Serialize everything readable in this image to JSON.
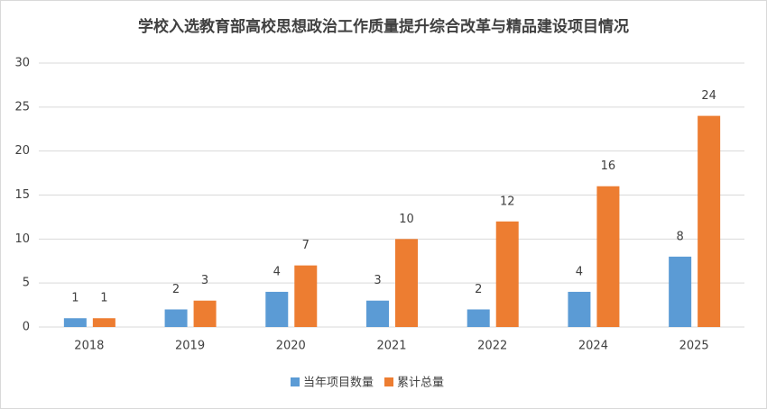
{
  "chart_data": {
    "type": "bar",
    "title": "学校入选教育部高校思想政治工作质量提升综合改革与精品建设项目情况",
    "categories": [
      "2018",
      "2019",
      "2020",
      "2021",
      "2022",
      "2024",
      "2025"
    ],
    "series": [
      {
        "name": "当年项目数量",
        "color": "#5b9bd5",
        "values": [
          1,
          2,
          4,
          3,
          2,
          4,
          8
        ]
      },
      {
        "name": "累计总量",
        "color": "#ed7d31",
        "values": [
          1,
          3,
          7,
          10,
          12,
          16,
          24
        ]
      }
    ],
    "ylim": [
      0,
      30
    ],
    "yticks": [
      0,
      5,
      10,
      15,
      20,
      25,
      30
    ],
    "grid": true,
    "legend": "bottom"
  }
}
